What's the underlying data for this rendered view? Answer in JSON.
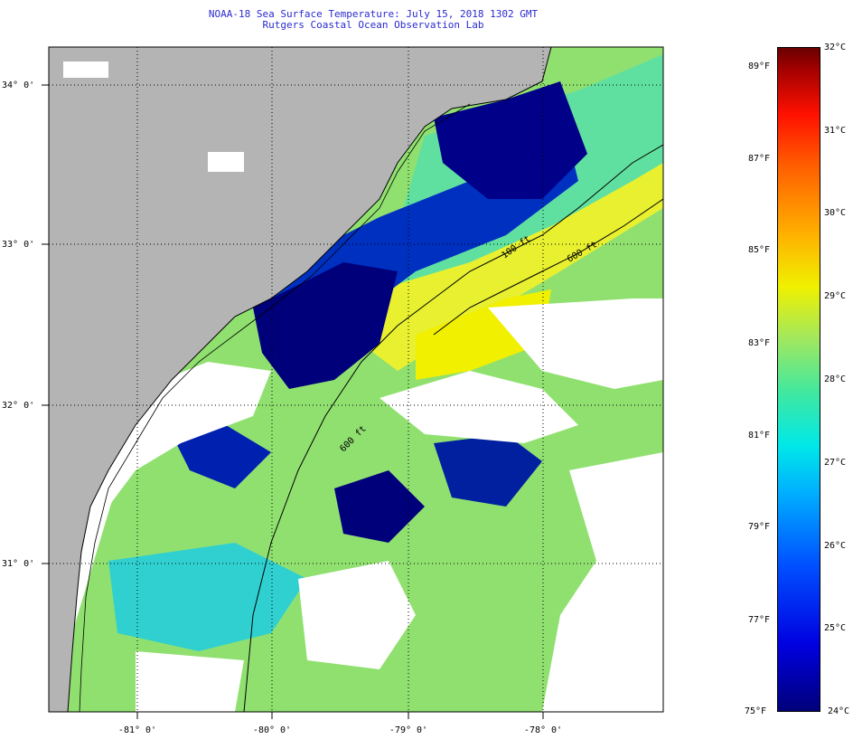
{
  "header": {
    "title": "NOAA-18 Sea Surface Temperature:  July 15, 2018 1302 GMT",
    "subtitle": "Rutgers Coastal Ocean Observation Lab"
  },
  "map": {
    "lat_labels": [
      "34° 0'",
      "33° 0'",
      "32° 0'",
      "31° 0'"
    ],
    "lon_labels": [
      "-81° 0'",
      "-80° 0'",
      "-79° 0'",
      "-78° 0'"
    ],
    "isobath_labels": [
      "100 ft",
      "600 ft",
      "600 ft"
    ],
    "colors": {
      "land": "#b4b4b4",
      "cloud": "#ffffff",
      "cold": "#00007a",
      "warm": "#f0f000"
    }
  },
  "colorbar": {
    "fahrenheit_labels": [
      "89°F",
      "87°F",
      "85°F",
      "83°F",
      "81°F",
      "79°F",
      "77°F",
      "75°F"
    ],
    "celsius_labels": [
      "32°C",
      "31°C",
      "30°C",
      "29°C",
      "28°C",
      "27°C",
      "26°C",
      "25°C",
      "24°C"
    ]
  }
}
